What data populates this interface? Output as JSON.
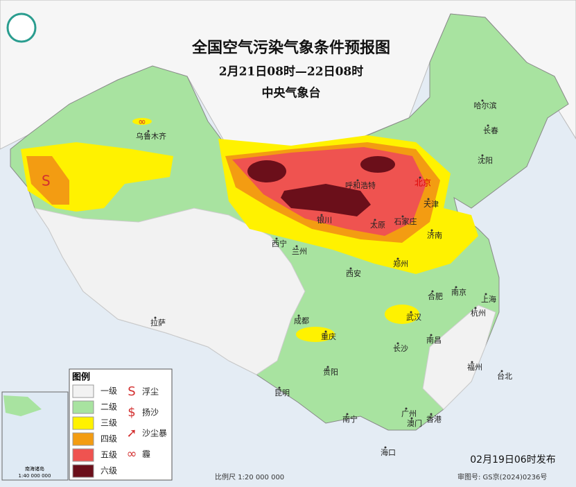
{
  "title": "全国空气污染气象条件预报图",
  "subtitle": "2月21日08时—22日08时",
  "issuer": "中央气象台",
  "cities": [
    "乌鲁木齐",
    "哈尔滨",
    "长春",
    "沈阳",
    "北京",
    "天津",
    "呼和浩特",
    "银川",
    "太原",
    "石家庄",
    "济南",
    "西宁",
    "兰州",
    "西安",
    "郑州",
    "合肥",
    "南京",
    "上海",
    "武汉",
    "杭州",
    "成都",
    "重庆",
    "拉萨",
    "长沙",
    "南昌",
    "福州",
    "台北",
    "贵阳",
    "昆明",
    "南宁",
    "广州",
    "澳门",
    "香港",
    "海口"
  ],
  "legend": {
    "title": "图例",
    "levels": [
      "一级",
      "二级",
      "三级",
      "四级",
      "五级",
      "六级"
    ],
    "symbols": [
      "浮尘",
      "扬沙",
      "沙尘暴",
      "霾"
    ]
  },
  "inset": {
    "title": "南海诸岛",
    "scale": "1:40 000 000"
  },
  "footer": {
    "issued": "02月19日06时发布",
    "scale": "比例尺 1:20 000 000",
    "review": "审图号: GS京(2024)0236号"
  }
}
